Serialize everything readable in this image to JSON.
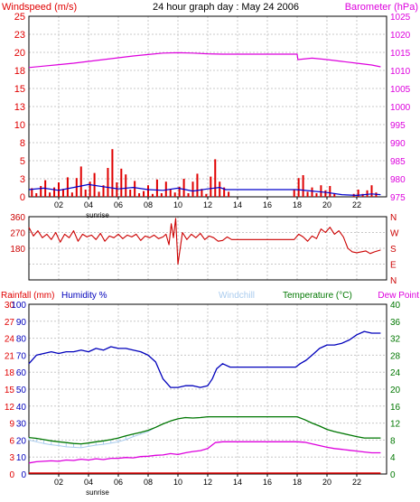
{
  "colors": {
    "wind": "#e00000",
    "gust": "#0000cc",
    "baro": "#dd00dd",
    "dir": "#cc0000",
    "rain": "#e00000",
    "hum": "#0000bb",
    "chill": "#aaccee",
    "temp": "#007700",
    "dew": "#dd00dd",
    "grid": "#c8c8c8",
    "axis_black": "#000000"
  },
  "chart_data": [
    {
      "type": "bar",
      "title": "24 hour graph day : May 24 2006",
      "ylabel": "Windspeed (m/s)",
      "ylabel_right": "Barometer (hPa)",
      "ylim": [
        0,
        25
      ],
      "ylim_right": [
        975,
        1025
      ],
      "yticks": [
        "0",
        "3",
        "5",
        "8",
        "10",
        "13",
        "15",
        "18",
        "20",
        "23",
        "25"
      ],
      "yticks_right": [
        "975",
        "980",
        "985",
        "990",
        "995",
        "1000",
        "1005",
        "1010",
        "1015",
        "1020",
        "1025"
      ],
      "xticks": [
        "02",
        "04",
        "06",
        "08",
        "10",
        "12",
        "14",
        "16",
        "18",
        "20",
        "22"
      ],
      "xlim": [
        0,
        24
      ],
      "grid": true,
      "note_under_axis": "sunrise",
      "series": [
        {
          "name": "Windspeed (m/s)",
          "x": [
            0.2,
            0.5,
            0.8,
            1.1,
            1.4,
            1.7,
            2.0,
            2.3,
            2.6,
            2.9,
            3.2,
            3.5,
            3.8,
            4.1,
            4.4,
            4.7,
            5.0,
            5.3,
            5.6,
            5.9,
            6.2,
            6.5,
            6.8,
            7.1,
            7.4,
            7.7,
            8.0,
            8.3,
            8.6,
            8.9,
            9.2,
            9.5,
            9.8,
            10.1,
            10.4,
            10.7,
            11.0,
            11.3,
            11.6,
            11.9,
            12.2,
            12.5,
            12.8,
            13.1,
            13.4,
            17.8,
            18.1,
            18.4,
            18.7,
            19.0,
            19.3,
            19.6,
            19.9,
            20.2,
            20.5,
            21.8,
            22.1,
            22.4,
            22.7,
            23.0,
            23.3
          ],
          "values": [
            1.2,
            0.5,
            1.5,
            2.3,
            0.6,
            1.3,
            2.0,
            1.1,
            2.7,
            0.6,
            2.6,
            4.2,
            1.0,
            2.1,
            3.3,
            0.7,
            1.6,
            4.0,
            6.6,
            2.0,
            3.9,
            3.1,
            1.0,
            2.2,
            0.5,
            0.8,
            1.6,
            0.4,
            2.4,
            0.5,
            2.1,
            1.1,
            0.6,
            1.4,
            2.5,
            0.5,
            2.1,
            3.2,
            1.1,
            0.4,
            2.8,
            5.2,
            2.1,
            1.3,
            0.7,
            1.0,
            2.6,
            3.0,
            0.7,
            1.3,
            0.5,
            1.6,
            0.9,
            1.5,
            0.5,
            0.4,
            1.0,
            0.4,
            0.9,
            1.6,
            0.6
          ]
        },
        {
          "name": "gust",
          "x": [
            0,
            1,
            2,
            3,
            4,
            5,
            6,
            7,
            8,
            9,
            10,
            11,
            12,
            12.8,
            13.2,
            13.5,
            18,
            19,
            20,
            21,
            22,
            23,
            23.6
          ],
          "values": [
            1.0,
            1.2,
            0.9,
            1.3,
            1.7,
            1.4,
            1.1,
            1.3,
            1.0,
            0.9,
            1.2,
            0.8,
            1.1,
            1.3,
            1.0,
            1.0,
            1.0,
            0.8,
            0.6,
            0.3,
            0.2,
            0.4,
            0.3
          ]
        },
        {
          "name": "Barometer (hPa)",
          "axis": "right",
          "x": [
            0,
            1,
            2,
            3,
            4,
            5,
            6,
            7,
            8,
            9,
            10,
            11,
            12,
            13,
            14,
            15,
            16,
            17,
            18,
            18.05,
            19,
            20,
            21,
            22,
            23,
            23.6
          ],
          "values": [
            1010.8,
            1011.2,
            1011.6,
            1012.0,
            1012.5,
            1013.0,
            1013.5,
            1014.0,
            1014.4,
            1014.8,
            1014.9,
            1014.8,
            1014.6,
            1014.5,
            1014.5,
            1014.5,
            1014.5,
            1014.5,
            1014.5,
            1013.0,
            1013.4,
            1013.0,
            1012.5,
            1012.0,
            1011.5,
            1011.0
          ]
        }
      ]
    },
    {
      "type": "line",
      "ylim": [
        0,
        360
      ],
      "yticks": [
        "180",
        "270",
        "360"
      ],
      "yticks_right": [
        "N",
        "W",
        "S",
        "E",
        "N"
      ],
      "xlim": [
        0,
        24
      ],
      "grid": true,
      "series": [
        {
          "name": "Wind direction",
          "x": [
            0,
            0.3,
            0.6,
            0.9,
            1.2,
            1.5,
            1.8,
            2.1,
            2.4,
            2.7,
            3.0,
            3.3,
            3.6,
            3.9,
            4.2,
            4.5,
            4.8,
            5.1,
            5.4,
            5.7,
            6.0,
            6.3,
            6.6,
            6.9,
            7.2,
            7.5,
            7.8,
            8.1,
            8.4,
            8.7,
            9.0,
            9.2,
            9.4,
            9.55,
            9.7,
            9.85,
            10.0,
            10.3,
            10.6,
            10.9,
            11.2,
            11.5,
            11.8,
            12.1,
            12.4,
            12.7,
            13.0,
            13.3,
            13.6,
            17.8,
            18.1,
            18.4,
            18.7,
            19.0,
            19.3,
            19.6,
            19.9,
            20.2,
            20.5,
            20.8,
            21.1,
            21.4,
            21.7,
            22.0,
            22.3,
            22.6,
            22.9,
            23.2,
            23.6
          ],
          "values": [
            300,
            250,
            280,
            240,
            260,
            230,
            270,
            215,
            260,
            240,
            280,
            220,
            260,
            245,
            255,
            230,
            265,
            220,
            250,
            240,
            260,
            235,
            255,
            245,
            260,
            225,
            250,
            240,
            255,
            235,
            245,
            260,
            200,
            320,
            240,
            350,
            90,
            270,
            230,
            260,
            240,
            265,
            230,
            250,
            240,
            220,
            225,
            245,
            230,
            230,
            260,
            245,
            220,
            250,
            235,
            290,
            270,
            300,
            260,
            280,
            245,
            180,
            160,
            155,
            160,
            165,
            150,
            160,
            170
          ]
        }
      ]
    },
    {
      "type": "line",
      "ylabel": "Rainfall (mm)",
      "ylabel_2": "Humidity %",
      "ylabel_3": "Windchill",
      "ylabel_right": "Temperature (°C)",
      "ylabel_right_2": "Dew Point",
      "ylim": [
        0,
        100
      ],
      "yticks_rain": [
        "0",
        "3",
        "6",
        "9",
        "12",
        "15",
        "18",
        "21",
        "24",
        "27",
        "30"
      ],
      "yticks_hum": [
        "0",
        "10",
        "20",
        "30",
        "40",
        "50",
        "60",
        "70",
        "80",
        "90",
        "100"
      ],
      "yticks_right": [
        "0",
        "4",
        "8",
        "12",
        "16",
        "20",
        "24",
        "28",
        "32",
        "36",
        "40"
      ],
      "ylim_rain": [
        0,
        30
      ],
      "ylim_right": [
        0,
        40
      ],
      "xticks": [
        "02",
        "04",
        "06",
        "08",
        "10",
        "12",
        "14",
        "16",
        "18",
        "20",
        "22"
      ],
      "xlim": [
        0,
        24
      ],
      "grid": true,
      "note_under_axis": "sunrise",
      "series": [
        {
          "name": "Humidity %",
          "x": [
            0,
            0.5,
            1,
            1.5,
            2,
            2.5,
            3,
            3.5,
            4,
            4.5,
            5,
            5.5,
            6,
            6.5,
            7,
            7.5,
            8,
            8.5,
            9,
            9.5,
            10,
            10.5,
            11,
            11.5,
            12,
            12.3,
            12.6,
            13,
            13.5,
            14,
            15,
            16,
            17,
            17.9,
            18.2,
            18.6,
            19,
            19.5,
            20,
            20.5,
            21,
            21.5,
            22,
            22.5,
            23,
            23.6
          ],
          "values": [
            65,
            70,
            71,
            72,
            71,
            72,
            72,
            73,
            72,
            74,
            73,
            75,
            74,
            74,
            73,
            72,
            70,
            66,
            56,
            51,
            51,
            52,
            52,
            51,
            52,
            56,
            62,
            65,
            63,
            63,
            63,
            63,
            63,
            63,
            65,
            67,
            70,
            74,
            76,
            76,
            77,
            79,
            82,
            84,
            83,
            83
          ]
        },
        {
          "name": "Temperature (°C)",
          "axis": "right",
          "x": [
            0,
            0.5,
            1,
            1.5,
            2,
            2.5,
            3,
            3.5,
            4,
            4.5,
            5,
            5.5,
            6,
            6.5,
            7,
            7.5,
            8,
            8.5,
            9,
            9.5,
            10,
            10.5,
            11,
            11.5,
            12,
            13,
            14,
            15,
            16,
            17,
            18,
            18.5,
            19,
            19.5,
            20,
            20.5,
            21,
            21.5,
            22,
            22.5,
            23,
            23.6
          ],
          "values": [
            8.6,
            8.4,
            8.1,
            7.8,
            7.6,
            7.4,
            7.2,
            7.1,
            7.3,
            7.6,
            7.8,
            8.1,
            8.5,
            9.0,
            9.4,
            9.8,
            10.3,
            11.0,
            11.8,
            12.5,
            13.0,
            13.3,
            13.2,
            13.3,
            13.5,
            13.5,
            13.5,
            13.5,
            13.5,
            13.5,
            13.5,
            12.8,
            12.0,
            11.3,
            10.5,
            10.0,
            9.6,
            9.2,
            8.8,
            8.5,
            8.5,
            8.5
          ]
        },
        {
          "name": "Windchill",
          "axis": "right",
          "x": [
            0,
            0.5,
            1,
            1.5,
            2,
            2.5,
            3,
            3.5,
            4,
            4.5,
            5,
            5.5,
            6,
            6.5,
            7,
            7.5,
            8,
            8.5,
            9,
            9.5,
            10,
            10.5,
            11,
            11.5,
            12,
            13,
            14,
            15,
            16,
            17,
            18,
            18.5,
            19,
            19.5,
            20,
            20.5,
            21,
            21.5,
            22,
            22.5,
            23,
            23.6
          ],
          "values": [
            8.0,
            7.6,
            7.2,
            6.9,
            6.7,
            6.4,
            6.3,
            6.2,
            6.5,
            6.8,
            7.0,
            7.3,
            7.6,
            8.1,
            8.8,
            9.4,
            10.0,
            11.0,
            11.8,
            12.5,
            13.0,
            13.3,
            13.2,
            13.3,
            13.5,
            13.5,
            13.5,
            13.5,
            13.5,
            13.5,
            13.5,
            12.8,
            12.0,
            11.3,
            10.5,
            10.0,
            9.6,
            9.2,
            8.8,
            8.5,
            8.5,
            8.5
          ]
        },
        {
          "name": "Dew Point",
          "axis": "right",
          "x": [
            0,
            0.5,
            1,
            1.5,
            2,
            2.5,
            3,
            3.5,
            4,
            4.5,
            5,
            5.5,
            6,
            6.5,
            7,
            7.5,
            8,
            8.5,
            9,
            9.5,
            10,
            10.5,
            11,
            11.5,
            12,
            12.5,
            13,
            14,
            15,
            16,
            17,
            18,
            18.5,
            19,
            19.5,
            20,
            20.5,
            21,
            21.5,
            22,
            22.5,
            23,
            23.6
          ],
          "values": [
            2.6,
            2.9,
            3.0,
            3.1,
            3.0,
            3.3,
            3.2,
            3.5,
            3.3,
            3.6,
            3.4,
            3.7,
            3.7,
            3.9,
            3.8,
            4.1,
            4.2,
            4.4,
            4.5,
            4.8,
            4.6,
            5.0,
            5.3,
            5.5,
            6.0,
            7.4,
            7.6,
            7.6,
            7.6,
            7.6,
            7.6,
            7.6,
            7.5,
            7.1,
            6.7,
            6.3,
            6.0,
            5.8,
            5.6,
            5.4,
            5.2,
            5.0,
            5.0
          ]
        },
        {
          "name": "Rainfall (mm)",
          "axis": "rain",
          "x": [
            0,
            23.6
          ],
          "values": [
            0,
            0
          ]
        }
      ]
    }
  ]
}
